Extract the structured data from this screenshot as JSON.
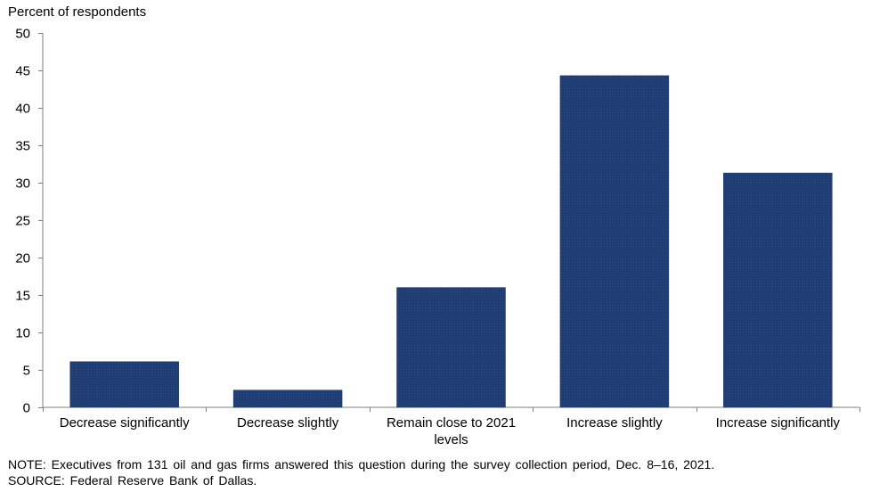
{
  "chart_data": {
    "type": "bar",
    "ylabel": "Percent of respondents",
    "categories": [
      [
        "Decrease significantly"
      ],
      [
        "Decrease slightly"
      ],
      [
        "Remain close to 2021",
        "levels"
      ],
      [
        "Increase slightly"
      ],
      [
        "Increase significantly"
      ]
    ],
    "values": [
      6.1,
      2.3,
      16.0,
      44.3,
      31.3
    ],
    "ylim": [
      0,
      50
    ],
    "yticks": [
      0,
      5,
      10,
      15,
      20,
      25,
      30,
      35,
      40,
      45,
      50
    ],
    "grid": false,
    "legend": "none",
    "bar_color": "#1f3d73"
  },
  "notes": {
    "note": "NOTE: Executives from 131 oil and gas firms answered this question during the survey collection period, Dec. 8–16, 2021.",
    "source": "SOURCE: Federal Reserve Bank of Dallas."
  }
}
